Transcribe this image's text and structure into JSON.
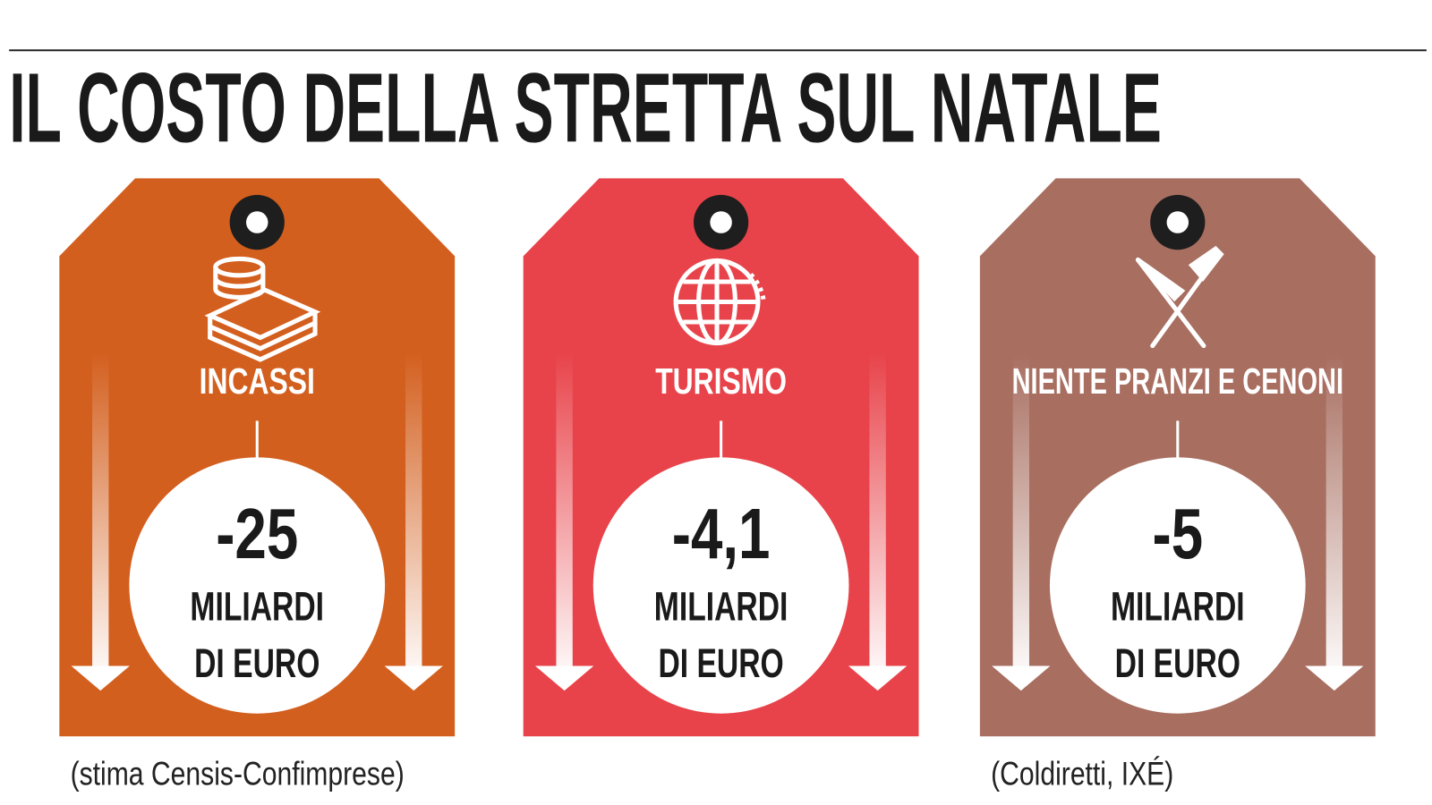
{
  "header": {
    "title": "IL COSTO DELLA STRETTA SUL NATALE"
  },
  "tags": [
    {
      "label": "INCASSI",
      "value": "-25",
      "unit_line1": "MILIARDI",
      "unit_line2": "DI EURO",
      "source": "(stima Censis-Confimprese)"
    },
    {
      "label": "TURISMO",
      "value": "-4,1",
      "unit_line1": "MILIARDI",
      "unit_line2": "DI EURO"
    },
    {
      "label": "NIENTE PRANZI E CENONI",
      "value": "-5",
      "unit_line1": "MILIARDI",
      "unit_line2": "DI EURO",
      "source": "(Coldiretti, IXÉ)"
    }
  ]
}
